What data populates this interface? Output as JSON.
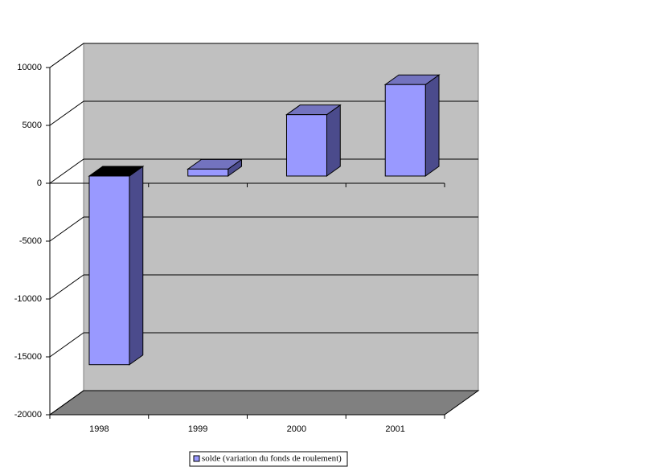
{
  "chart_data": {
    "type": "bar3d",
    "categories": [
      "1998",
      "1999",
      "2000",
      "2001"
    ],
    "series": [
      {
        "name": "solde (variation du fonds de roulement)",
        "color": "#9999ff",
        "values": [
          -16300,
          600,
          5300,
          7900
        ]
      }
    ],
    "ylim": [
      -20000,
      10000
    ],
    "yticks": [
      -20000,
      -15000,
      -10000,
      -5000,
      0,
      5000,
      10000
    ],
    "grid": true,
    "legend": "bottom"
  }
}
